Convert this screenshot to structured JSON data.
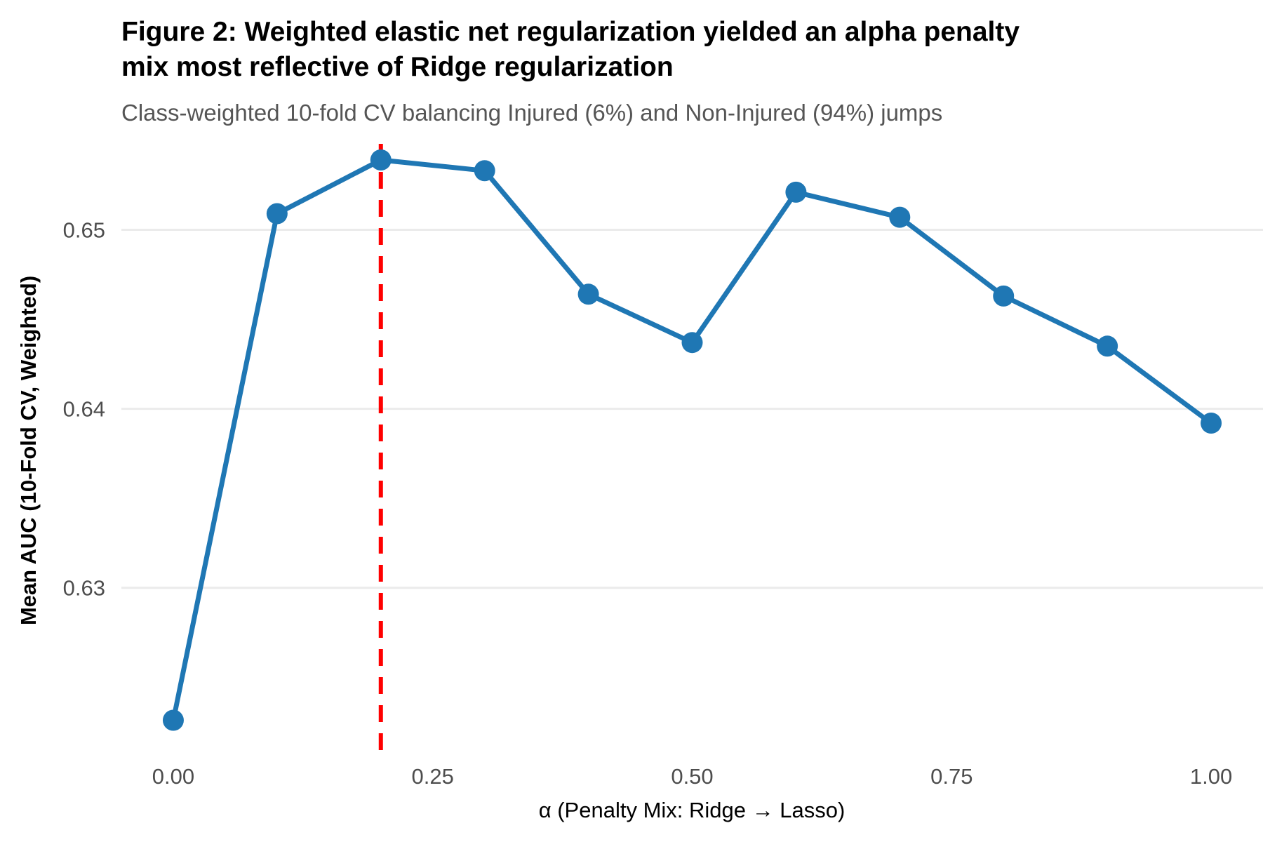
{
  "chart_data": {
    "type": "line",
    "title_line1": "Figure 2: Weighted elastic net regularization yielded an alpha penalty",
    "title_line2": "mix most reflective of Ridge regularization",
    "subtitle": "Class-weighted 10-fold CV balancing Injured (6%) and Non-Injured (94%) jumps",
    "xlabel": "α (Penalty Mix: Ridge → Lasso)",
    "ylabel": "Mean AUC (10-Fold CV, Weighted)",
    "x_ticks": [
      0.0,
      0.25,
      0.5,
      0.75,
      1.0
    ],
    "x_tick_labels": [
      "0.00",
      "0.25",
      "0.50",
      "0.75",
      "1.00"
    ],
    "y_ticks": [
      0.63,
      0.64,
      0.65
    ],
    "y_tick_labels": [
      "0.63",
      "0.64",
      "0.65"
    ],
    "xlim": [
      -0.05,
      1.05
    ],
    "ylim": [
      0.6207,
      0.6548
    ],
    "grid": "horizontal major",
    "series": [
      {
        "x": [
          0.0,
          0.1,
          0.2,
          0.3,
          0.4,
          0.5,
          0.6,
          0.7,
          0.8,
          0.9,
          1.0
        ],
        "values": [
          0.6226,
          0.6509,
          0.6539,
          0.6533,
          0.6464,
          0.6437,
          0.6521,
          0.6507,
          0.6463,
          0.6435,
          0.6392
        ],
        "color": "#1f77b4"
      }
    ],
    "reference_line": {
      "orientation": "vertical",
      "x": 0.2,
      "style": "dashed",
      "color": "#ff0000"
    }
  }
}
